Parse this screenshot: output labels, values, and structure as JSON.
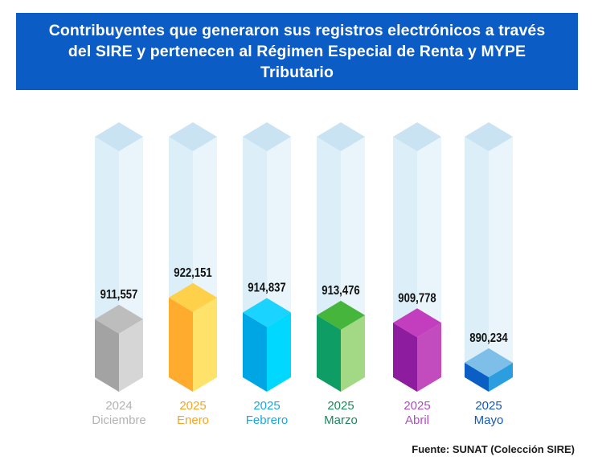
{
  "title": "Contribuyentes que generaron sus registros electrónicos a través del SIRE y pertenecen al Régimen Especial de Renta y MYPE Tributario",
  "source": "Fuente: SUNAT (Colección SIRE)",
  "chart_data": {
    "type": "bar",
    "title": "Contribuyentes que generaron sus registros electrónicos a través del SIRE y pertenecen al Régimen Especial de Renta y MYPE Tributario",
    "categories": [
      "2024 Diciembre",
      "2025 Enero",
      "2025 Febrero",
      "2025 Marzo",
      "2025 Abril",
      "2025 Mayo"
    ],
    "series": [
      {
        "name": "Contribuyentes",
        "values": [
          911557,
          922151,
          914837,
          913476,
          909778,
          890234
        ]
      }
    ],
    "value_labels": [
      "911,557",
      "922,151",
      "914,837",
      "913,476",
      "909,778",
      "890,234"
    ],
    "years": [
      "2024",
      "2025",
      "2025",
      "2025",
      "2025",
      "2025"
    ],
    "months": [
      "Diciembre",
      "Enero",
      "Febrero",
      "Marzo",
      "Abril",
      "Mayo"
    ],
    "xlabel": "",
    "ylabel": "",
    "ylim": [
      876000,
      930000
    ],
    "colors": [
      {
        "label": "#b3b3b3",
        "top": "#bdbdbd",
        "left": "#a3a3a3",
        "right": "#d6d6d6"
      },
      {
        "label": "#f5a623",
        "top": "#ffd04a",
        "left": "#ffab2e",
        "right": "#ffe26a"
      },
      {
        "label": "#1aa7e0",
        "top": "#1bd3ff",
        "left": "#00a5e3",
        "right": "#00d8ff"
      },
      {
        "label": "#1a8a5a",
        "top": "#46b53c",
        "left": "#0f9d66",
        "right": "#a3d885"
      },
      {
        "label": "#b04cc0",
        "top": "#c33dbf",
        "left": "#8e1c9e",
        "right": "#c24bbd"
      },
      {
        "label": "#1559b8",
        "top": "#7dbfe8",
        "left": "#0a5ec4",
        "right": "#2c9ee0"
      }
    ],
    "ghost_colors": {
      "top": "#c9e3f2",
      "left": "#dceef8",
      "right": "#eaf5fb"
    }
  }
}
